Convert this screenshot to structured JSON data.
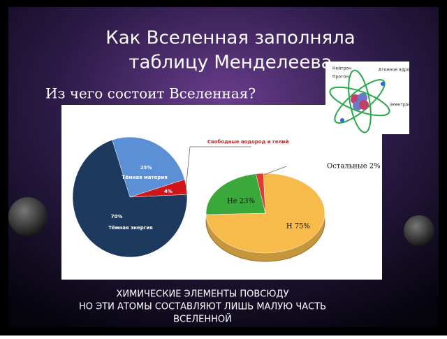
{
  "slide": {
    "title": [
      "Как Вселенная заполняла",
      "таблицу Менделеева"
    ],
    "subtitle": "Из чего состоит Вселенная?",
    "caption": [
      "ХИМИЧЕСКИЕ ЭЛЕМЕНТЫ ПОВСЮДУ",
      "НО ЭТИ АТОМЫ СОСТАВЛЯЮТ ЛИШЬ МАЛУЮ ЧАСТЬ",
      "ВСЕЛЕННОЙ"
    ]
  },
  "atom_labels": [
    "Нейтрон",
    "Протон",
    "Атомное ядро",
    "Электрон"
  ],
  "chart_data": [
    {
      "type": "pie",
      "categories": [
        "Тёмная материя",
        "Свободные водород и гелий",
        "Тёмная энергия"
      ],
      "values": [
        25,
        4,
        70
      ],
      "value_labels": [
        "25%",
        "4%",
        "70%"
      ],
      "colors": [
        "#5b8fd6",
        "#d0161a",
        "#1d3a5e"
      ]
    },
    {
      "type": "pie3d",
      "values": [
        75,
        23,
        2
      ],
      "value_labels": [
        "H 75%",
        "He 23%",
        "Остальные 2%"
      ],
      "colors": [
        "#f6bb4a",
        "#3aa83a",
        "#e03a34"
      ]
    }
  ]
}
